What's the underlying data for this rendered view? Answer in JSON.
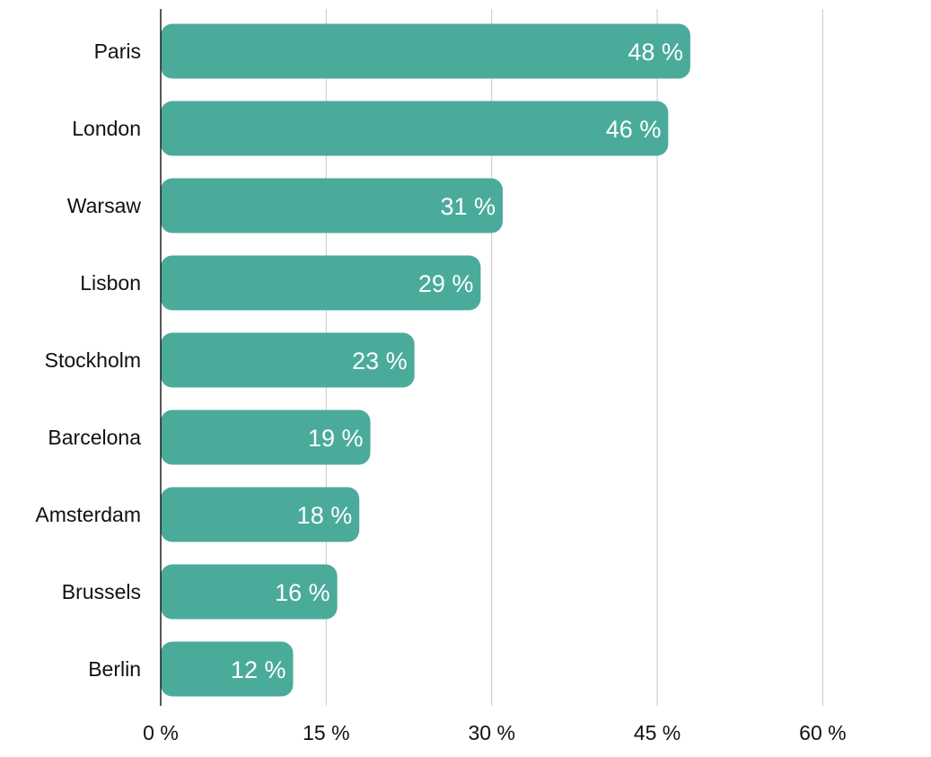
{
  "chart_data": {
    "type": "bar",
    "orientation": "horizontal",
    "categories": [
      "Paris",
      "London",
      "Warsaw",
      "Lisbon",
      "Stockholm",
      "Barcelona",
      "Amsterdam",
      "Brussels",
      "Berlin"
    ],
    "values": [
      48,
      46,
      31,
      29,
      23,
      19,
      18,
      16,
      12
    ],
    "value_labels": [
      "48 %",
      "46 %",
      "31 %",
      "29 %",
      "23 %",
      "19 %",
      "18 %",
      "16 %",
      "12 %"
    ],
    "x_ticks": [
      0,
      15,
      30,
      45,
      60
    ],
    "x_tick_labels": [
      "0 %",
      "15 %",
      "30 %",
      "45 %",
      "60 %"
    ],
    "xlim": [
      0,
      60
    ],
    "grid": true,
    "legend": "none",
    "bar_color": "#4aab9b",
    "title": "",
    "xlabel": "",
    "ylabel": ""
  }
}
